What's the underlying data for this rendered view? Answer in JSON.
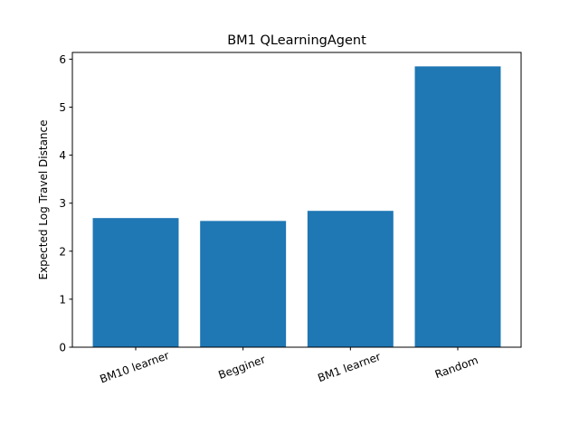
{
  "chart_data": {
    "type": "bar",
    "title": "BM1 QLearningAgent",
    "xlabel": "",
    "ylabel": "Expected Log Travel Distance",
    "categories": [
      "BM10 learner",
      "Begginer",
      "BM1 learner",
      "Random"
    ],
    "values": [
      2.69,
      2.63,
      2.84,
      5.85
    ],
    "ylim": [
      0,
      6.14
    ],
    "yticks": [
      0,
      1,
      2,
      3,
      4,
      5,
      6
    ],
    "bar_color": "#1f77b4",
    "grid": false,
    "legend": "none",
    "xtick_rotation": -20
  }
}
